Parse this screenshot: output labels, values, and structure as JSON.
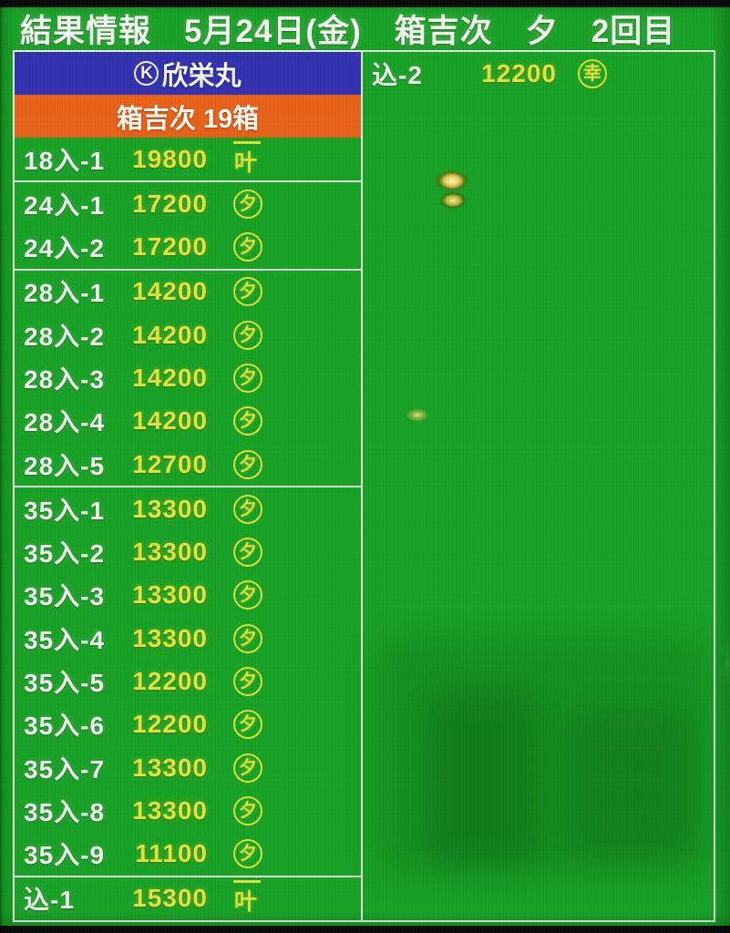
{
  "header": {
    "program": "結果情報",
    "date": "5月24日(金)",
    "market": "箱吉次",
    "session": "夕",
    "round": "2回目"
  },
  "left_table": {
    "vessel_mark": "K",
    "vessel_name": "欣栄丸",
    "lot_title": "箱吉次 19箱",
    "rows": [
      {
        "label": "18入-1",
        "price": "19800",
        "mark_char": "叶",
        "mark_style": "overline"
      },
      {
        "label": "24入-1",
        "price": "17200",
        "mark_char": "夕",
        "mark_style": "circle"
      },
      {
        "label": "24入-2",
        "price": "17200",
        "mark_char": "夕",
        "mark_style": "circle"
      },
      {
        "label": "28入-1",
        "price": "14200",
        "mark_char": "夕",
        "mark_style": "circle"
      },
      {
        "label": "28入-2",
        "price": "14200",
        "mark_char": "夕",
        "mark_style": "circle"
      },
      {
        "label": "28入-3",
        "price": "14200",
        "mark_char": "夕",
        "mark_style": "circle"
      },
      {
        "label": "28入-4",
        "price": "14200",
        "mark_char": "夕",
        "mark_style": "circle"
      },
      {
        "label": "28入-5",
        "price": "12700",
        "mark_char": "夕",
        "mark_style": "circle"
      },
      {
        "label": "35入-1",
        "price": "13300",
        "mark_char": "夕",
        "mark_style": "circle"
      },
      {
        "label": "35入-2",
        "price": "13300",
        "mark_char": "夕",
        "mark_style": "circle"
      },
      {
        "label": "35入-3",
        "price": "13300",
        "mark_char": "夕",
        "mark_style": "circle"
      },
      {
        "label": "35入-4",
        "price": "13300",
        "mark_char": "夕",
        "mark_style": "circle"
      },
      {
        "label": "35入-5",
        "price": "12200",
        "mark_char": "夕",
        "mark_style": "circle"
      },
      {
        "label": "35入-6",
        "price": "12200",
        "mark_char": "夕",
        "mark_style": "circle"
      },
      {
        "label": "35入-7",
        "price": "13300",
        "mark_char": "夕",
        "mark_style": "circle"
      },
      {
        "label": "35入-8",
        "price": "13300",
        "mark_char": "夕",
        "mark_style": "circle"
      },
      {
        "label": "35入-9",
        "price": "11100",
        "mark_char": "夕",
        "mark_style": "circle"
      },
      {
        "label": "込-1",
        "price": "15300",
        "mark_char": "叶",
        "mark_style": "overline"
      }
    ]
  },
  "right_panel": {
    "rows": [
      {
        "label": "込-2",
        "price": "12200",
        "mark_char": "幸",
        "mark_style": "circle"
      }
    ]
  },
  "colors": {
    "background_green": "#18a226",
    "band_blue": "#3431b2",
    "band_orange": "#eb6119",
    "text_yellow": "#e9e43c",
    "text_white": "#f5f7f2",
    "line_white": "#e4eee2",
    "bezel_black": "#0b0b0b"
  }
}
